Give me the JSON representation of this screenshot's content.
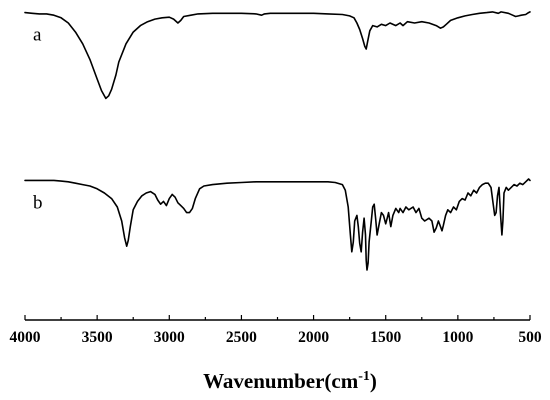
{
  "chart_data": {
    "type": "line",
    "title": "",
    "xlabel_prefix": "Wavenumber(cm",
    "xlabel_sup": "-1",
    "xlabel_suffix": ")",
    "ylabel": "",
    "xlim": [
      4000,
      500
    ],
    "x_reversed": true,
    "ylim": [
      0,
      1
    ],
    "x_ticks": [
      4000,
      3500,
      3000,
      2500,
      2000,
      1500,
      1000,
      500
    ],
    "y_axis_visible": false,
    "grid": false,
    "legend": "none",
    "series": [
      {
        "name": "a",
        "offset": 0.5,
        "points": [
          [
            4000,
            0.98
          ],
          [
            3950,
            0.975
          ],
          [
            3900,
            0.97
          ],
          [
            3850,
            0.97
          ],
          [
            3800,
            0.96
          ],
          [
            3750,
            0.94
          ],
          [
            3700,
            0.9
          ],
          [
            3650,
            0.83
          ],
          [
            3600,
            0.74
          ],
          [
            3550,
            0.62
          ],
          [
            3500,
            0.47
          ],
          [
            3470,
            0.38
          ],
          [
            3440,
            0.32
          ],
          [
            3420,
            0.34
          ],
          [
            3400,
            0.39
          ],
          [
            3370,
            0.5
          ],
          [
            3350,
            0.6
          ],
          [
            3300,
            0.74
          ],
          [
            3250,
            0.83
          ],
          [
            3200,
            0.88
          ],
          [
            3150,
            0.91
          ],
          [
            3100,
            0.93
          ],
          [
            3050,
            0.94
          ],
          [
            3000,
            0.945
          ],
          [
            2970,
            0.93
          ],
          [
            2940,
            0.9
          ],
          [
            2920,
            0.92
          ],
          [
            2900,
            0.95
          ],
          [
            2850,
            0.96
          ],
          [
            2800,
            0.97
          ],
          [
            2700,
            0.975
          ],
          [
            2600,
            0.975
          ],
          [
            2500,
            0.975
          ],
          [
            2400,
            0.97
          ],
          [
            2360,
            0.96
          ],
          [
            2340,
            0.97
          ],
          [
            2300,
            0.975
          ],
          [
            2200,
            0.975
          ],
          [
            2100,
            0.975
          ],
          [
            2000,
            0.975
          ],
          [
            1900,
            0.97
          ],
          [
            1800,
            0.965
          ],
          [
            1750,
            0.955
          ],
          [
            1720,
            0.94
          ],
          [
            1700,
            0.9
          ],
          [
            1680,
            0.85
          ],
          [
            1660,
            0.78
          ],
          [
            1645,
            0.72
          ],
          [
            1635,
            0.7
          ],
          [
            1625,
            0.76
          ],
          [
            1610,
            0.84
          ],
          [
            1590,
            0.88
          ],
          [
            1560,
            0.87
          ],
          [
            1530,
            0.89
          ],
          [
            1500,
            0.88
          ],
          [
            1470,
            0.9
          ],
          [
            1430,
            0.88
          ],
          [
            1400,
            0.9
          ],
          [
            1380,
            0.88
          ],
          [
            1350,
            0.91
          ],
          [
            1300,
            0.9
          ],
          [
            1250,
            0.91
          ],
          [
            1200,
            0.9
          ],
          [
            1150,
            0.88
          ],
          [
            1120,
            0.86
          ],
          [
            1100,
            0.87
          ],
          [
            1080,
            0.89
          ],
          [
            1050,
            0.92
          ],
          [
            1000,
            0.94
          ],
          [
            950,
            0.955
          ],
          [
            900,
            0.965
          ],
          [
            850,
            0.975
          ],
          [
            800,
            0.98
          ],
          [
            760,
            0.985
          ],
          [
            720,
            0.975
          ],
          [
            700,
            0.985
          ],
          [
            650,
            0.975
          ],
          [
            620,
            0.96
          ],
          [
            600,
            0.95
          ],
          [
            580,
            0.955
          ],
          [
            560,
            0.96
          ],
          [
            530,
            0.965
          ],
          [
            510,
            0.98
          ],
          [
            500,
            0.985
          ]
        ]
      },
      {
        "name": "b",
        "offset": 0.0,
        "points": [
          [
            4000,
            0.89
          ],
          [
            3900,
            0.89
          ],
          [
            3800,
            0.89
          ],
          [
            3750,
            0.885
          ],
          [
            3700,
            0.88
          ],
          [
            3650,
            0.87
          ],
          [
            3600,
            0.86
          ],
          [
            3550,
            0.85
          ],
          [
            3500,
            0.83
          ],
          [
            3450,
            0.8
          ],
          [
            3400,
            0.76
          ],
          [
            3360,
            0.7
          ],
          [
            3330,
            0.6
          ],
          [
            3310,
            0.48
          ],
          [
            3295,
            0.42
          ],
          [
            3285,
            0.46
          ],
          [
            3270,
            0.56
          ],
          [
            3250,
            0.68
          ],
          [
            3220,
            0.74
          ],
          [
            3190,
            0.78
          ],
          [
            3160,
            0.8
          ],
          [
            3130,
            0.81
          ],
          [
            3100,
            0.79
          ],
          [
            3080,
            0.75
          ],
          [
            3060,
            0.72
          ],
          [
            3040,
            0.74
          ],
          [
            3020,
            0.71
          ],
          [
            3000,
            0.76
          ],
          [
            2980,
            0.79
          ],
          [
            2960,
            0.77
          ],
          [
            2940,
            0.73
          ],
          [
            2920,
            0.71
          ],
          [
            2900,
            0.69
          ],
          [
            2880,
            0.66
          ],
          [
            2860,
            0.66
          ],
          [
            2840,
            0.69
          ],
          [
            2820,
            0.76
          ],
          [
            2790,
            0.83
          ],
          [
            2760,
            0.85
          ],
          [
            2700,
            0.86
          ],
          [
            2600,
            0.87
          ],
          [
            2500,
            0.875
          ],
          [
            2400,
            0.88
          ],
          [
            2300,
            0.88
          ],
          [
            2200,
            0.88
          ],
          [
            2100,
            0.88
          ],
          [
            2000,
            0.88
          ],
          [
            1900,
            0.88
          ],
          [
            1850,
            0.875
          ],
          [
            1800,
            0.86
          ],
          [
            1780,
            0.82
          ],
          [
            1760,
            0.7
          ],
          [
            1745,
            0.5
          ],
          [
            1735,
            0.38
          ],
          [
            1725,
            0.45
          ],
          [
            1715,
            0.6
          ],
          [
            1700,
            0.64
          ],
          [
            1690,
            0.56
          ],
          [
            1680,
            0.44
          ],
          [
            1670,
            0.38
          ],
          [
            1660,
            0.52
          ],
          [
            1650,
            0.62
          ],
          [
            1640,
            0.5
          ],
          [
            1635,
            0.32
          ],
          [
            1630,
            0.25
          ],
          [
            1622,
            0.3
          ],
          [
            1615,
            0.45
          ],
          [
            1600,
            0.6
          ],
          [
            1590,
            0.7
          ],
          [
            1580,
            0.72
          ],
          [
            1570,
            0.62
          ],
          [
            1560,
            0.5
          ],
          [
            1545,
            0.58
          ],
          [
            1530,
            0.66
          ],
          [
            1515,
            0.64
          ],
          [
            1500,
            0.58
          ],
          [
            1490,
            0.62
          ],
          [
            1480,
            0.66
          ],
          [
            1465,
            0.56
          ],
          [
            1450,
            0.64
          ],
          [
            1430,
            0.69
          ],
          [
            1410,
            0.66
          ],
          [
            1400,
            0.69
          ],
          [
            1380,
            0.66
          ],
          [
            1360,
            0.7
          ],
          [
            1340,
            0.68
          ],
          [
            1310,
            0.7
          ],
          [
            1290,
            0.66
          ],
          [
            1270,
            0.69
          ],
          [
            1250,
            0.62
          ],
          [
            1230,
            0.6
          ],
          [
            1200,
            0.62
          ],
          [
            1180,
            0.6
          ],
          [
            1165,
            0.52
          ],
          [
            1150,
            0.55
          ],
          [
            1135,
            0.6
          ],
          [
            1120,
            0.56
          ],
          [
            1110,
            0.53
          ],
          [
            1100,
            0.57
          ],
          [
            1085,
            0.64
          ],
          [
            1070,
            0.68
          ],
          [
            1050,
            0.66
          ],
          [
            1030,
            0.7
          ],
          [
            1010,
            0.68
          ],
          [
            990,
            0.74
          ],
          [
            970,
            0.76
          ],
          [
            950,
            0.75
          ],
          [
            930,
            0.8
          ],
          [
            910,
            0.78
          ],
          [
            890,
            0.82
          ],
          [
            870,
            0.8
          ],
          [
            850,
            0.84
          ],
          [
            830,
            0.86
          ],
          [
            810,
            0.87
          ],
          [
            790,
            0.87
          ],
          [
            770,
            0.84
          ],
          [
            755,
            0.72
          ],
          [
            745,
            0.64
          ],
          [
            735,
            0.66
          ],
          [
            725,
            0.78
          ],
          [
            715,
            0.84
          ],
          [
            705,
            0.66
          ],
          [
            695,
            0.5
          ],
          [
            688,
            0.6
          ],
          [
            680,
            0.8
          ],
          [
            665,
            0.84
          ],
          [
            650,
            0.82
          ],
          [
            630,
            0.84
          ],
          [
            610,
            0.86
          ],
          [
            590,
            0.85
          ],
          [
            570,
            0.87
          ],
          [
            550,
            0.86
          ],
          [
            530,
            0.88
          ],
          [
            510,
            0.9
          ],
          [
            500,
            0.89
          ]
        ]
      }
    ]
  }
}
